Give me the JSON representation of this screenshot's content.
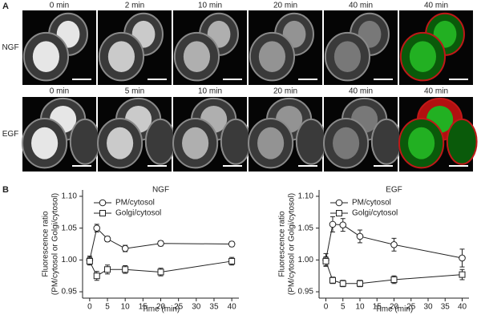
{
  "panel_a": {
    "label": "A",
    "rows": [
      {
        "name": "NGF",
        "times": [
          "0 min",
          "2 min",
          "10 min",
          "20 min",
          "40 min",
          "40 min"
        ]
      },
      {
        "name": "EGF",
        "times": [
          "0 min",
          "5 min",
          "10 min",
          "20 min",
          "40 min",
          "40 min"
        ]
      }
    ]
  },
  "panel_b": {
    "label": "B"
  },
  "chart_data": [
    {
      "type": "line",
      "title": "NGF",
      "xlabel": "Time (min)",
      "ylabel": [
        "Fluorescence ratio",
        "(PM/cytosol or Golgi/cytosol)"
      ],
      "x": [
        0,
        2,
        5,
        10,
        20,
        40
      ],
      "xlim": [
        -2,
        42
      ],
      "xticks": [
        0,
        5,
        10,
        15,
        20,
        25,
        30,
        35,
        40
      ],
      "ylim": [
        0.94,
        1.11
      ],
      "yticks": [
        {
          "value": 1.1,
          "label": "1.10"
        },
        {
          "value": 1.05,
          "label": "1.05"
        },
        {
          "value": 1.0,
          "label": "1.00"
        },
        {
          "value": 0.95,
          "label": "0.95"
        }
      ],
      "series": [
        {
          "name": "PM/cytosol",
          "color": "#222222",
          "marker": "circle",
          "values": [
            1.0,
            1.05,
            1.033,
            1.018,
            1.026,
            1.025
          ],
          "errors": [
            0.006,
            0.006,
            0.004,
            0.005,
            0.004,
            0.004
          ]
        },
        {
          "name": "Golgi/cytosol",
          "color": "#222222",
          "marker": "square",
          "values": [
            0.998,
            0.975,
            0.985,
            0.985,
            0.981,
            0.998
          ],
          "errors": [
            0.006,
            0.007,
            0.007,
            0.006,
            0.006,
            0.006
          ]
        }
      ]
    },
    {
      "type": "line",
      "title": "EGF",
      "xlabel": "Time (min)",
      "ylabel": [
        "Fluorescence ratio",
        "(PM/cytosol or Golgi/cytosol)"
      ],
      "x": [
        0,
        2,
        5,
        10,
        20,
        40
      ],
      "xlim": [
        -2,
        42
      ],
      "xticks": [
        0,
        5,
        10,
        15,
        20,
        25,
        30,
        35,
        40
      ],
      "ylim": [
        0.94,
        1.11
      ],
      "yticks": [
        {
          "value": 1.1,
          "label": "1.10"
        },
        {
          "value": 1.05,
          "label": "1.05"
        },
        {
          "value": 1.0,
          "label": "1.00"
        },
        {
          "value": 0.95,
          "label": "0.95"
        }
      ],
      "series": [
        {
          "name": "PM/cytosol",
          "color": "#222222",
          "marker": "circle",
          "values": [
            1.0,
            1.056,
            1.055,
            1.037,
            1.024,
            1.003
          ],
          "errors": [
            0.01,
            0.012,
            0.01,
            0.01,
            0.01,
            0.014
          ]
        },
        {
          "name": "Golgi/cytosol",
          "color": "#222222",
          "marker": "square",
          "values": [
            0.998,
            0.968,
            0.963,
            0.963,
            0.969,
            0.977
          ],
          "errors": [
            0.007,
            0.005,
            0.005,
            0.005,
            0.006,
            0.008
          ]
        }
      ]
    }
  ]
}
